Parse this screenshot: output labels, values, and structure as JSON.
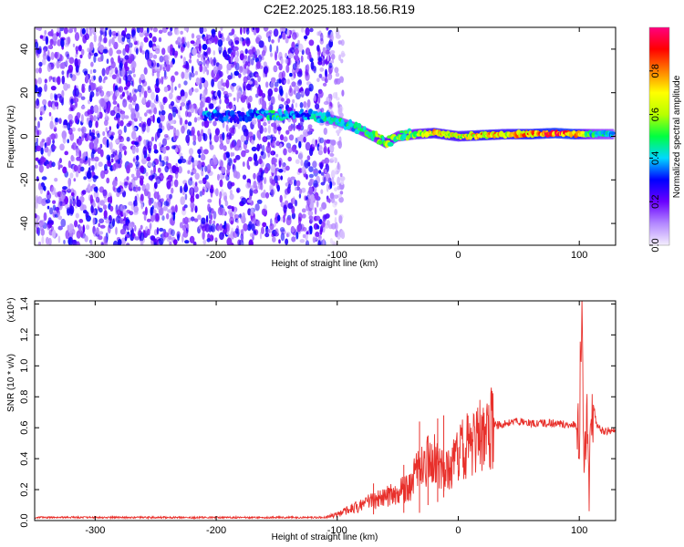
{
  "title": "C2E2.2025.183.18.56.R19",
  "chart_data": [
    {
      "type": "heatmap",
      "xlabel": "Height of straight line (km)",
      "ylabel": "Frequency (Hz)",
      "xlim": [
        -350,
        130
      ],
      "ylim": [
        -50,
        50
      ],
      "x_ticks": [
        -300,
        -200,
        -100,
        0,
        100
      ],
      "x_tick_labels": [
        "-300",
        "-200",
        "-100",
        "0",
        "100"
      ],
      "y_ticks": [
        -40,
        -20,
        0,
        20,
        40
      ],
      "y_tick_labels": [
        "-40",
        "-20",
        "0",
        "20",
        "40"
      ],
      "colorbar": {
        "label": "Normalized spectral amplitude",
        "range": [
          0,
          1
        ],
        "ticks": [
          0,
          0.2,
          0.4,
          0.6,
          0.8
        ],
        "tick_labels": [
          "0.0",
          "0.2",
          "0.4",
          "0.6",
          "0.8"
        ],
        "colors": [
          "#f4eefd",
          "#b388ff",
          "#6a00ff",
          "#0000ff",
          "#00d8ff",
          "#00ff40",
          "#b8ff00",
          "#ffff00",
          "#ff8000",
          "#ff0000",
          "#ff0080"
        ]
      },
      "noise_region": {
        "x": [
          -350,
          -105
        ],
        "freq": [
          -50,
          50
        ],
        "amplitude": [
          0.05,
          0.3
        ]
      },
      "ridge": [
        {
          "x": -210,
          "freq": 9.5,
          "amplitude": 0.4
        },
        {
          "x": -180,
          "freq": 9,
          "amplitude": 0.3
        },
        {
          "x": -165,
          "freq": 10,
          "amplitude": 0.4
        },
        {
          "x": -150,
          "freq": 10,
          "amplitude": 0.5
        },
        {
          "x": -130,
          "freq": 10,
          "amplitude": 0.35
        },
        {
          "x": -115,
          "freq": 9,
          "amplitude": 0.45
        },
        {
          "x": -100,
          "freq": 7,
          "amplitude": 0.45
        },
        {
          "x": -85,
          "freq": 4,
          "amplitude": 0.5
        },
        {
          "x": -70,
          "freq": 0,
          "amplitude": 0.55
        },
        {
          "x": -60,
          "freq": -3,
          "amplitude": 0.6
        },
        {
          "x": -50,
          "freq": 0,
          "amplitude": 0.55
        },
        {
          "x": -35,
          "freq": 1,
          "amplitude": 0.6
        },
        {
          "x": -20,
          "freq": 1.5,
          "amplitude": 0.75
        },
        {
          "x": 0,
          "freq": 0,
          "amplitude": 0.7
        },
        {
          "x": 20,
          "freq": 0.5,
          "amplitude": 0.8
        },
        {
          "x": 40,
          "freq": 1,
          "amplitude": 0.75
        },
        {
          "x": 60,
          "freq": 1,
          "amplitude": 0.85
        },
        {
          "x": 80,
          "freq": 1.5,
          "amplitude": 0.9
        },
        {
          "x": 95,
          "freq": 1,
          "amplitude": 0.9
        },
        {
          "x": 110,
          "freq": 1,
          "amplitude": 0.5
        },
        {
          "x": 128,
          "freq": 1,
          "amplitude": 0.45
        }
      ]
    },
    {
      "type": "line",
      "xlabel": "Height of straight line (km)",
      "ylabel": "SNR (10 * v/v)",
      "y_multiplier": "(x10⁴)",
      "xlim": [
        -350,
        130
      ],
      "ylim": [
        0,
        1.42
      ],
      "x_ticks": [
        -300,
        -200,
        -100,
        0,
        100
      ],
      "x_tick_labels": [
        "-300",
        "-200",
        "-100",
        "0",
        "100"
      ],
      "y_ticks": [
        0,
        0.2,
        0.4,
        0.6,
        0.8,
        1.0,
        1.2,
        1.4
      ],
      "y_tick_labels": [
        "0.0",
        "0.2",
        "0.4",
        "0.6",
        "0.8",
        "1.0",
        "1.2",
        "1.4"
      ],
      "color": "#e8302b",
      "x": [
        -350,
        -300,
        -200,
        -150,
        -110,
        -100,
        -90,
        -80,
        -70,
        -60,
        -50,
        -40,
        -35,
        -30,
        -25,
        -20,
        -15,
        -10,
        -5,
        0,
        10,
        20,
        30,
        40,
        50,
        60,
        70,
        80,
        90,
        95,
        100,
        102,
        104,
        106,
        108,
        110,
        115,
        120,
        130
      ],
      "values": [
        0.02,
        0.02,
        0.02,
        0.02,
        0.02,
        0.04,
        0.07,
        0.1,
        0.13,
        0.15,
        0.19,
        0.22,
        0.3,
        0.35,
        0.38,
        0.4,
        0.36,
        0.33,
        0.38,
        0.44,
        0.5,
        0.56,
        0.61,
        0.63,
        0.64,
        0.63,
        0.63,
        0.63,
        0.62,
        0.62,
        0.6,
        1.42,
        0.15,
        0.75,
        0.1,
        0.8,
        0.6,
        0.58,
        0.58
      ],
      "spikes": [
        {
          "x": -32,
          "values": [
            0.64,
            0.05
          ]
        },
        {
          "x": -25,
          "values": [
            0.55,
            0.1
          ]
        },
        {
          "x": -17,
          "values": [
            0.66,
            0.12
          ]
        },
        {
          "x": -12,
          "values": [
            0.68,
            0.15
          ]
        },
        {
          "x": -45,
          "values": [
            0.36,
            0.05
          ]
        },
        {
          "x": -70,
          "values": [
            0.24,
            0.04
          ]
        }
      ]
    }
  ]
}
